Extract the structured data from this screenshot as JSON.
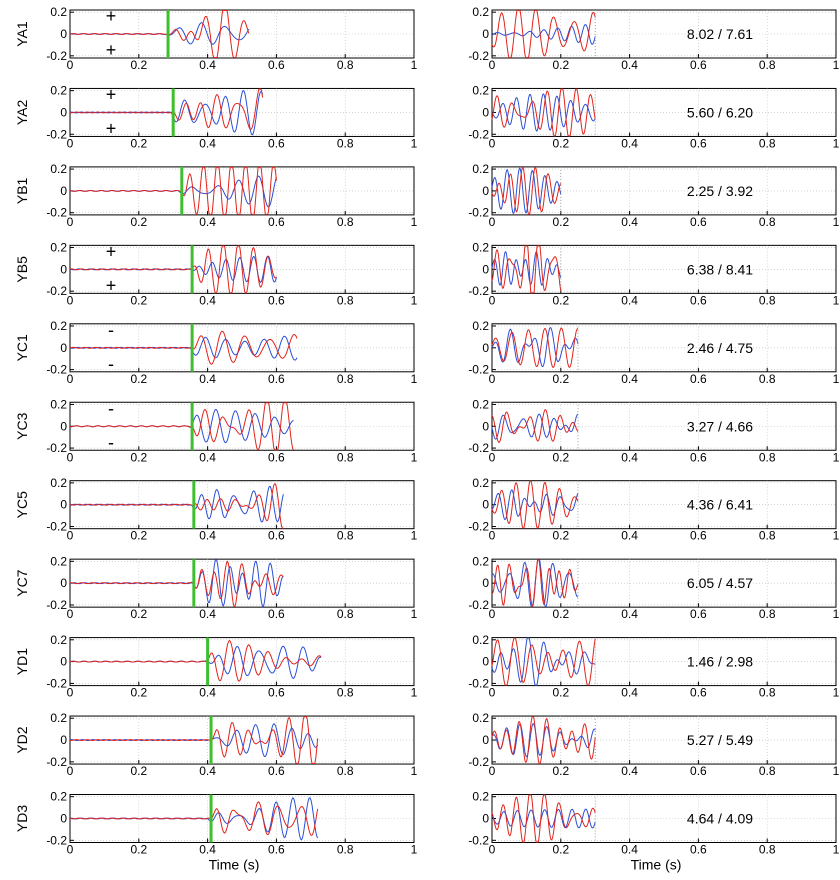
{
  "chart_data": {
    "type": "line",
    "x_axis_label": "Time (s)",
    "x_ticks": [
      "0",
      "0.2",
      "0.4",
      "0.6",
      "0.8",
      "1"
    ],
    "y_ticks": [
      "0.2",
      "0",
      "-0.2"
    ],
    "xlim": [
      0,
      1
    ],
    "ylim": [
      -0.22,
      0.22
    ],
    "grid": true,
    "series_colors": {
      "blue": "#2b4fd6",
      "red": "#e2231a",
      "marker": "#3fbf2f"
    },
    "panels": [
      {
        "label": "YA1",
        "marker_time": 0.285,
        "left_end": 0.52,
        "right_end": 0.3,
        "ratio": "8.02 /  7.61",
        "signs": [
          "+",
          "+"
        ]
      },
      {
        "label": "YA2",
        "marker_time": 0.3,
        "left_end": 0.56,
        "right_end": 0.3,
        "ratio": "5.60 /  6.20",
        "signs": [
          "+",
          "+"
        ]
      },
      {
        "label": "YB1",
        "marker_time": 0.325,
        "left_end": 0.6,
        "right_end": 0.2,
        "ratio": "2.25 /  3.92",
        "signs": []
      },
      {
        "label": "YB5",
        "marker_time": 0.355,
        "left_end": 0.6,
        "right_end": 0.2,
        "ratio": "6.38 /  8.41",
        "signs": [
          "+",
          "+"
        ]
      },
      {
        "label": "YC1",
        "marker_time": 0.355,
        "left_end": 0.66,
        "right_end": 0.25,
        "ratio": "2.46 /  4.75",
        "signs": [
          "-",
          "-"
        ]
      },
      {
        "label": "YC3",
        "marker_time": 0.355,
        "left_end": 0.65,
        "right_end": 0.25,
        "ratio": "3.27 /  4.66",
        "signs": [
          "-",
          "-"
        ]
      },
      {
        "label": "YC5",
        "marker_time": 0.36,
        "left_end": 0.62,
        "right_end": 0.25,
        "ratio": "4.36 /  6.41",
        "signs": []
      },
      {
        "label": "YC7",
        "marker_time": 0.36,
        "left_end": 0.62,
        "right_end": 0.25,
        "ratio": "6.05 /  4.57",
        "signs": []
      },
      {
        "label": "YD1",
        "marker_time": 0.4,
        "left_end": 0.73,
        "right_end": 0.3,
        "ratio": "1.46 /  2.98",
        "signs": []
      },
      {
        "label": "YD2",
        "marker_time": 0.41,
        "left_end": 0.72,
        "right_end": 0.3,
        "ratio": "5.27 /  5.49",
        "signs": []
      },
      {
        "label": "YD3",
        "marker_time": 0.41,
        "left_end": 0.72,
        "right_end": 0.3,
        "ratio": "4.64 /  4.09",
        "signs": []
      }
    ]
  }
}
